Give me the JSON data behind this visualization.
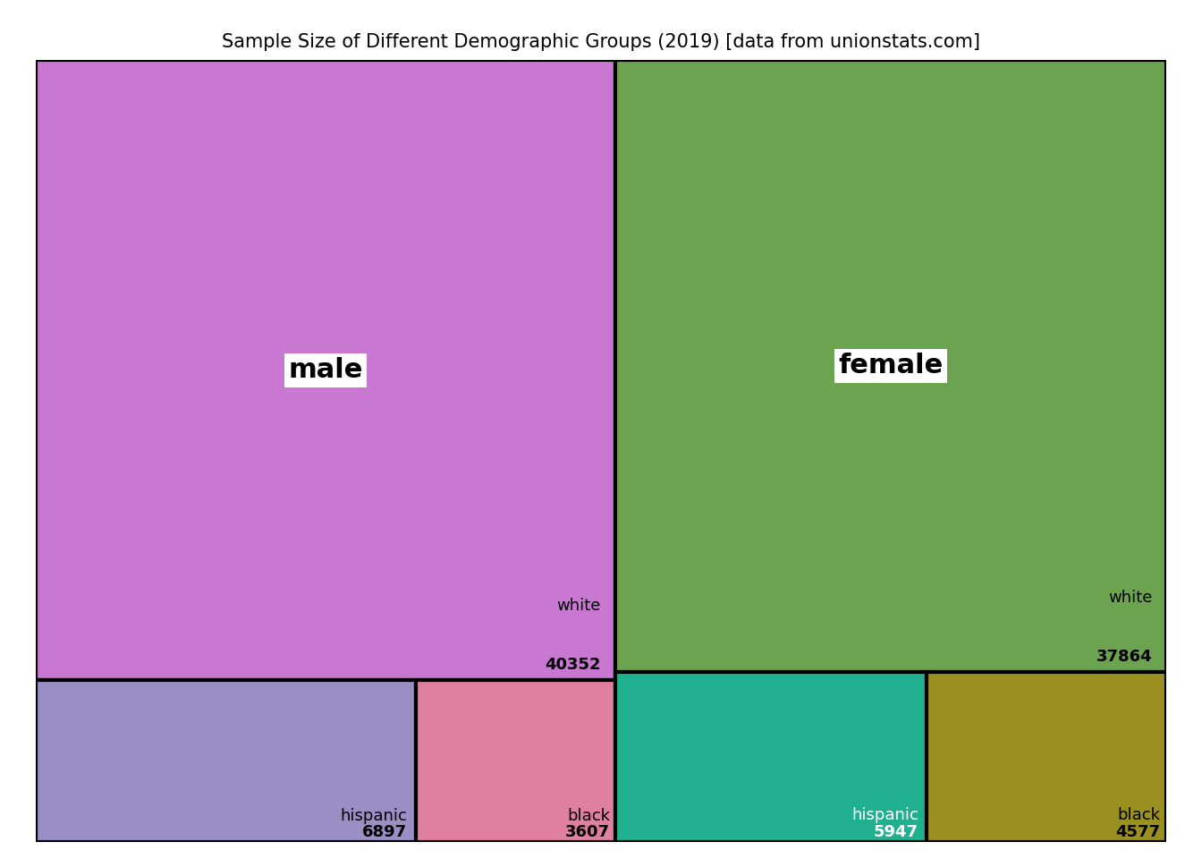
{
  "title": "Sample Size of Different Demographic Groups (2019) [data from unionstats.com]",
  "title_fontsize": 15,
  "groups": {
    "male": {
      "white": 40352,
      "hispanic": 6897,
      "black": 3607
    },
    "female": {
      "white": 37864,
      "hispanic": 5947,
      "black": 4577
    }
  },
  "colors": {
    "male_white": "#C878D0",
    "male_hispanic": "#9B8EC4",
    "male_black": "#E080A0",
    "female_white": "#6BA350",
    "female_hispanic": "#20B090",
    "female_black": "#9A9020"
  },
  "label_colors": {
    "male_white": "black",
    "male_hispanic": "black",
    "male_black": "black",
    "female_white": "black",
    "female_hispanic": "white",
    "female_black": "black"
  },
  "background_color": "white",
  "border_color": "black",
  "border_width": 3.0,
  "sublabel_fontsize": 13,
  "mainlabel_fontsize": 22
}
